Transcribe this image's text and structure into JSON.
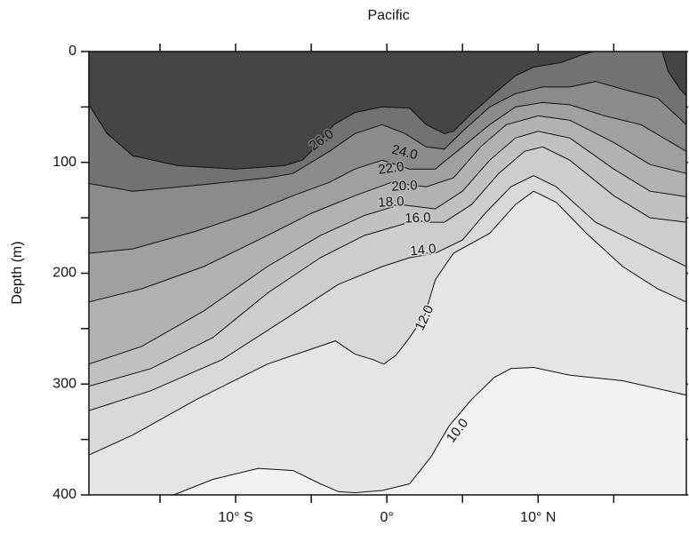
{
  "chart_data": {
    "type": "contour",
    "title": "Pacific",
    "y_label": "Depth (m)",
    "xlim": [
      -19.7,
      19.8
    ],
    "ylim": [
      0,
      400
    ],
    "y_inverted": true,
    "xticks": [
      {
        "value": -10,
        "label": "10° S"
      },
      {
        "value": 0,
        "label": "0°"
      },
      {
        "value": 10,
        "label": "10° N"
      }
    ],
    "xminorticks": [
      -15,
      -5,
      5,
      15
    ],
    "yticks": [
      0,
      100,
      200,
      300,
      400
    ],
    "yminorticks": [
      50,
      150,
      250,
      350
    ],
    "base_color": "#f2f2f2",
    "line_color": "#111111",
    "series": [
      {
        "name": "26.0",
        "color": "#454545",
        "x": [
          -19.7,
          -18.5,
          -16.8,
          -13.8,
          -10,
          -6.8,
          -5.6,
          -5,
          -3.5,
          -2.1,
          -0.3,
          1.5,
          2.6,
          3.8,
          4.4,
          5.6,
          7.1,
          8.5,
          9.7,
          11.5,
          12.9,
          13.7,
          null,
          18.2,
          18.6,
          19.4,
          19.8
        ],
        "values": [
          48,
          74,
          94,
          103,
          106,
          103,
          98,
          90,
          66,
          55,
          50,
          51,
          66,
          74,
          72,
          56,
          38,
          22,
          14,
          10,
          3,
          0,
          null,
          0,
          18,
          34,
          40
        ]
      },
      {
        "name": "24.0",
        "color": "#727272",
        "x": [
          -19.7,
          -16.8,
          -12.1,
          -7.9,
          -6.2,
          -3.8,
          -2.1,
          -0.3,
          1.2,
          2.6,
          3.8,
          5,
          6.8,
          8.5,
          10.3,
          12.1,
          13.8,
          15.6,
          17.9,
          19.8
        ],
        "values": [
          119,
          126,
          120,
          114,
          110,
          90,
          74,
          66,
          74,
          86,
          88,
          72,
          50,
          38,
          32,
          32,
          27,
          34,
          42,
          66
        ]
      },
      {
        "name": "22.0",
        "color": "#8b8b8b",
        "x": [
          -19.7,
          -16.8,
          -12.6,
          -9.1,
          -6.2,
          -3.8,
          -2.1,
          -0.3,
          1.5,
          3.2,
          5,
          6.8,
          8.5,
          10.3,
          12.1,
          14.4,
          16.8,
          19.8
        ],
        "values": [
          182,
          178,
          162,
          146,
          130,
          118,
          106,
          98,
          106,
          106,
          86,
          66,
          50,
          46,
          48,
          58,
          66,
          90
        ]
      },
      {
        "name": "20.0",
        "color": "#a0a0a0",
        "x": [
          -19.7,
          -16.2,
          -12.1,
          -7.9,
          -5,
          -2.1,
          0.3,
          2.6,
          4.4,
          6.2,
          7.9,
          10,
          12.1,
          15,
          17.4,
          19.8
        ],
        "values": [
          226,
          214,
          194,
          166,
          146,
          130,
          118,
          122,
          114,
          86,
          66,
          58,
          62,
          82,
          102,
          110
        ]
      },
      {
        "name": "18.0",
        "color": "#b2b2b2",
        "x": [
          -19.7,
          -16.2,
          -12.1,
          -7.9,
          -4.4,
          -1.5,
          0.9,
          3.2,
          5,
          6.8,
          8.5,
          10,
          12.1,
          15,
          17.4,
          19.8
        ],
        "values": [
          282,
          266,
          234,
          194,
          166,
          148,
          138,
          142,
          126,
          98,
          78,
          72,
          78,
          106,
          126,
          131
        ]
      },
      {
        "name": "16.0",
        "color": "#c1c1c1",
        "x": [
          -19.7,
          -15.6,
          -11.5,
          -7.9,
          -4.4,
          -1.5,
          1.5,
          3.8,
          5.6,
          7.4,
          9.1,
          10.3,
          12.1,
          15,
          17.4,
          19.8
        ],
        "values": [
          302,
          286,
          258,
          218,
          186,
          166,
          154,
          154,
          138,
          110,
          90,
          86,
          98,
          130,
          150,
          154
        ]
      },
      {
        "name": "14.0",
        "color": "#cdcdcd",
        "x": [
          -19.7,
          -15.6,
          -10.9,
          -6.8,
          -3.2,
          -0.3,
          1.5,
          3.2,
          5,
          6.5,
          8.2,
          9.7,
          11.2,
          13.8,
          16.8,
          19.8
        ],
        "values": [
          324,
          306,
          278,
          242,
          210,
          194,
          186,
          182,
          170,
          146,
          122,
          112,
          122,
          154,
          174,
          194
        ]
      },
      {
        "name": "12.0",
        "color": "#d9d9d9",
        "x": [
          -19.7,
          -16.8,
          -12.6,
          -7.9,
          -3.4,
          -2.1,
          -0.9,
          -0.2,
          0.6,
          1.5,
          2.5,
          3.2,
          4.4,
          6.8,
          8.5,
          9.7,
          11.2,
          13.2,
          15.6,
          17.9,
          19.8
        ],
        "values": [
          364,
          346,
          314,
          282,
          261,
          273,
          278,
          282,
          274,
          258,
          238,
          206,
          182,
          164,
          138,
          126,
          136,
          164,
          194,
          214,
          226
        ]
      },
      {
        "name": "10.0",
        "color": "#e5e5e5",
        "x": [
          -14.1,
          -11.5,
          -8.5,
          -6.2,
          -4.4,
          -3.2,
          -2.1,
          -0.3,
          1.5,
          2.9,
          4.1,
          5.6,
          7.1,
          8.2,
          9.7,
          12.1,
          15.6,
          19.8
        ],
        "values": [
          400,
          386,
          376,
          378,
          390,
          397,
          398,
          396,
          390,
          366,
          338,
          314,
          294,
          286,
          285,
          292,
          297,
          310
        ]
      }
    ]
  }
}
